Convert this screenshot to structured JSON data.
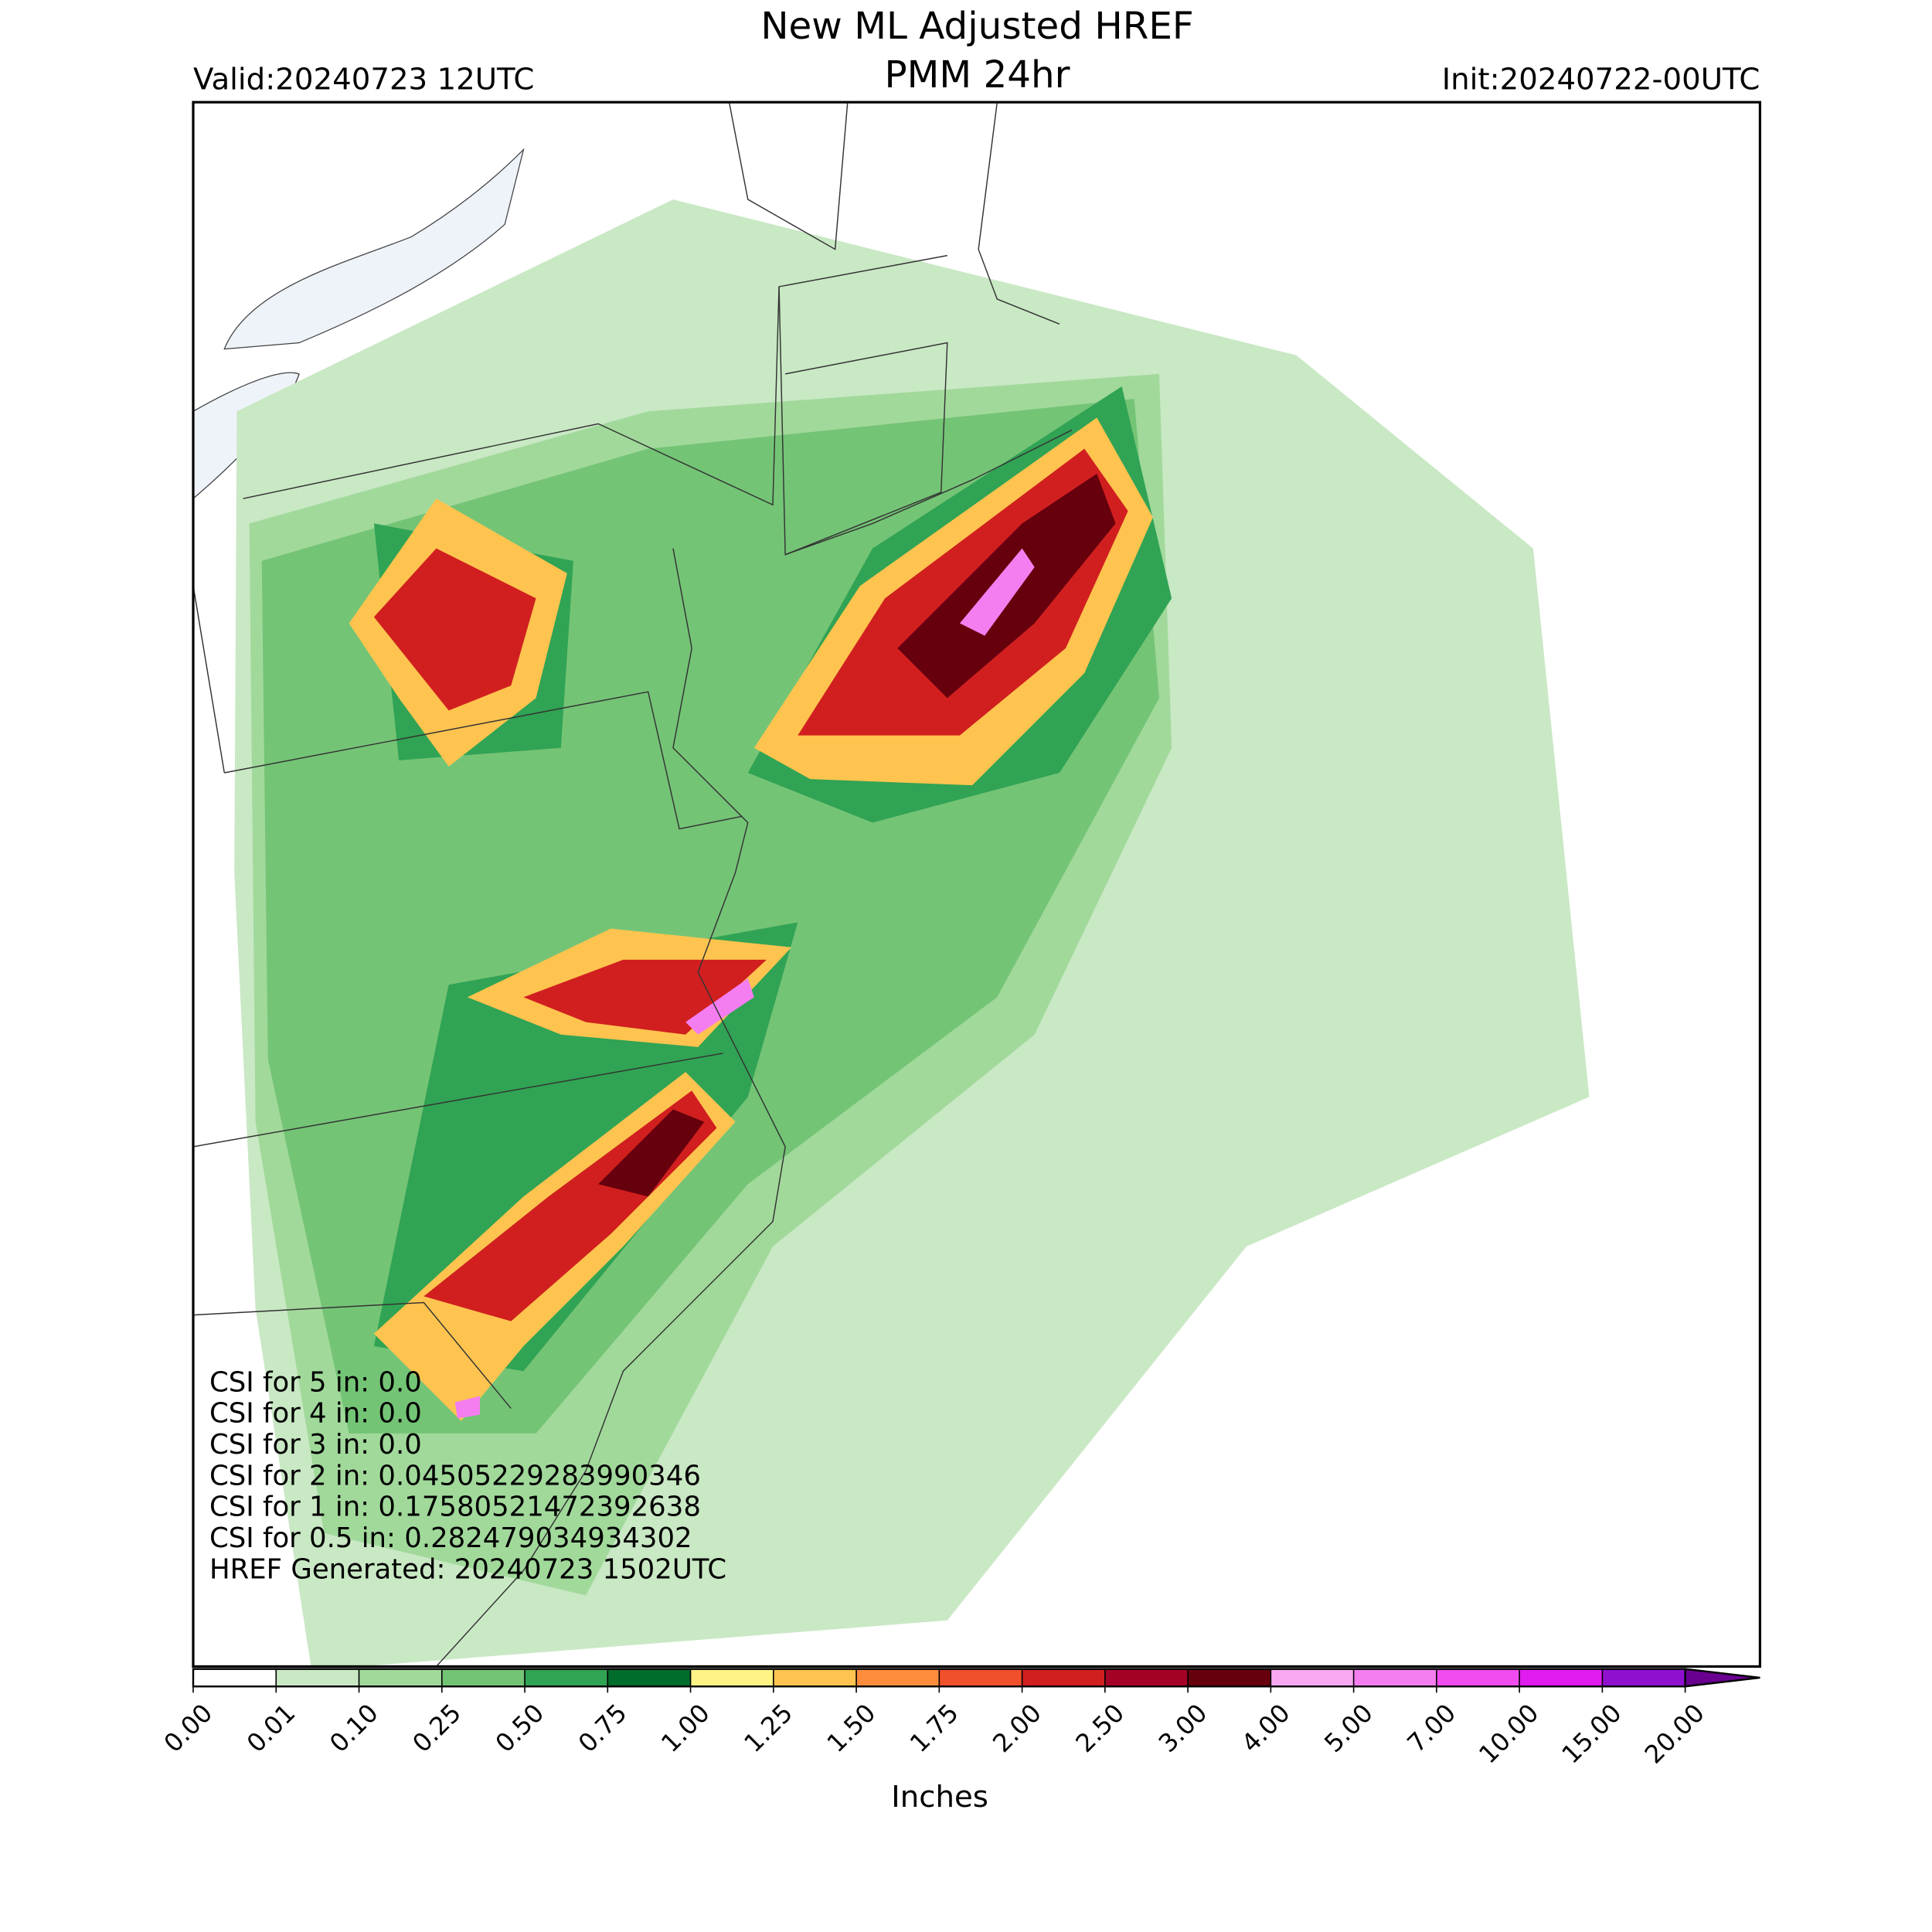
{
  "header": {
    "title": "New ML Adjusted HREF",
    "subtitle": "PMM 24hr",
    "valid": "Valid:20240723 12UTC",
    "init": "Init:20240722-00UTC"
  },
  "annotations": [
    "CSI for 5 in: 0.0",
    "CSI for 4 in: 0.0",
    "CSI for 3 in: 0.0",
    "CSI for 2 in: 0.04505229283990346",
    "CSI for 1 in: 0.17580521472392638",
    "CSI for 0.5 in: 0.282479034934302",
    "HREF Generated: 20240723 1502UTC"
  ],
  "colorbar": {
    "label": "Inches",
    "ticks": [
      {
        "value": 0,
        "label": "0.00"
      },
      {
        "value": 0.01,
        "label": "0.01"
      },
      {
        "value": 0.1,
        "label": "0.10"
      },
      {
        "value": 0.25,
        "label": "0.25"
      },
      {
        "value": 0.5,
        "label": "0.50"
      },
      {
        "value": 0.75,
        "label": "0.75"
      },
      {
        "value": 1,
        "label": "1.00"
      },
      {
        "value": 1.25,
        "label": "1.25"
      },
      {
        "value": 1.5,
        "label": "1.50"
      },
      {
        "value": 1.75,
        "label": "1.75"
      },
      {
        "value": 2,
        "label": "2.00"
      },
      {
        "value": 2.5,
        "label": "2.50"
      },
      {
        "value": 3,
        "label": "3.00"
      },
      {
        "value": 4,
        "label": "4.00"
      },
      {
        "value": 5,
        "label": "5.00"
      },
      {
        "value": 7,
        "label": "7.00"
      },
      {
        "value": 10,
        "label": "10.00"
      },
      {
        "value": 15,
        "label": "15.00"
      },
      {
        "value": 20,
        "label": "20.00"
      }
    ],
    "colors": [
      "#ffffff",
      "#c9e8c4",
      "#a1d99b",
      "#74c476",
      "#31a354",
      "#006d2c",
      "#fff385",
      "#fec44f",
      "#fd8d3c",
      "#f0502a",
      "#d11f1f",
      "#a50026",
      "#67000d",
      "#f7a8f0",
      "#f47ef0",
      "#f04cf0",
      "#e01cf0",
      "#9010d0"
    ],
    "extend_color": "#6a0090"
  }
}
